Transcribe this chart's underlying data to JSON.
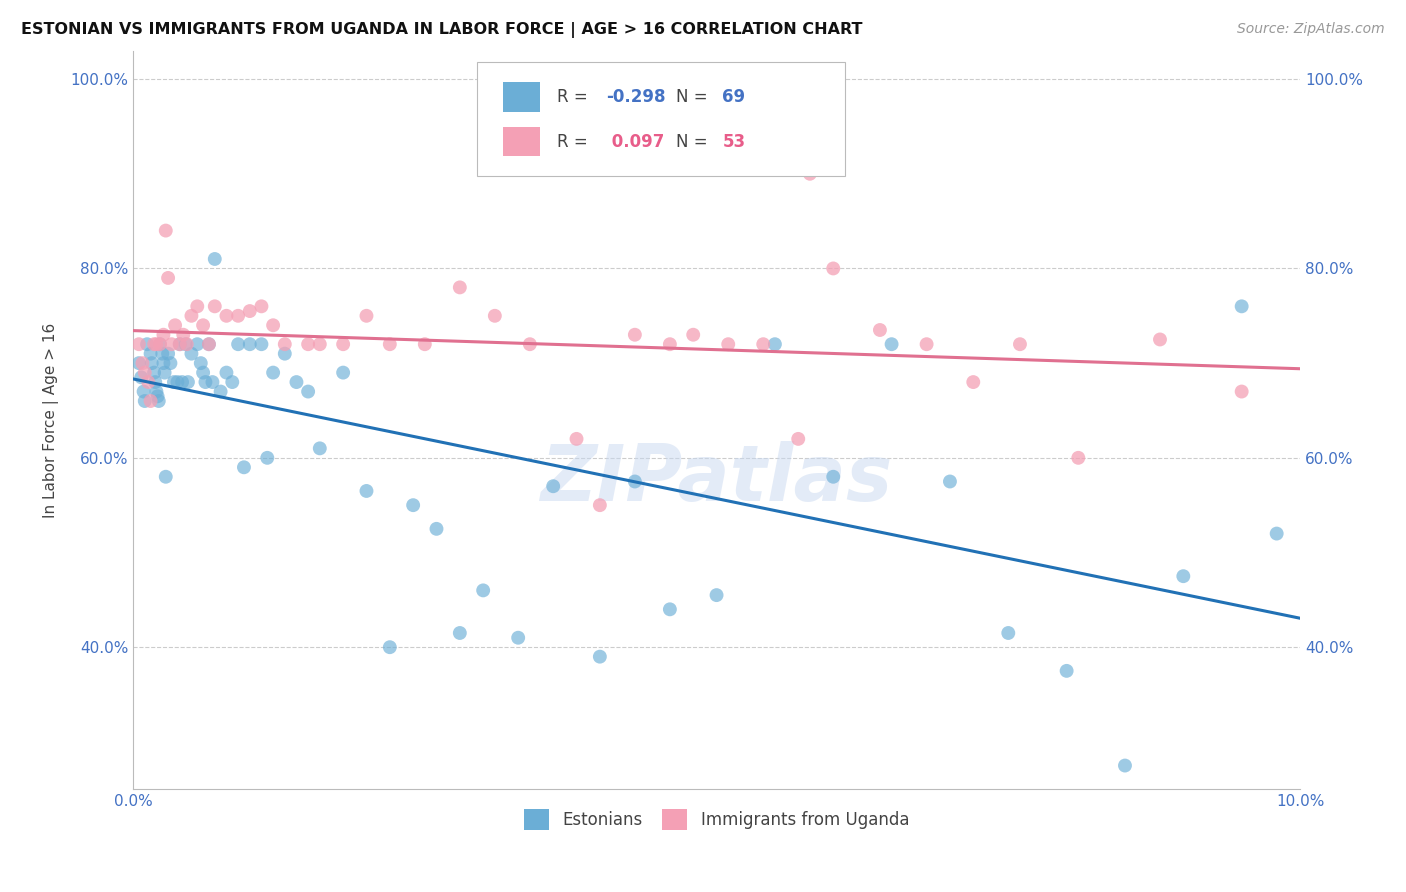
{
  "title": "ESTONIAN VS IMMIGRANTS FROM UGANDA IN LABOR FORCE | AGE > 16 CORRELATION CHART",
  "source": "Source: ZipAtlas.com",
  "ylabel": "In Labor Force | Age > 16",
  "xlim": [
    0.0,
    0.1
  ],
  "ylim": [
    0.25,
    1.03
  ],
  "yticks": [
    0.4,
    0.6,
    0.8,
    1.0
  ],
  "ytick_labels": [
    "40.0%",
    "60.0%",
    "80.0%",
    "100.0%"
  ],
  "xticks": [
    0.0,
    0.02,
    0.04,
    0.06,
    0.08,
    0.1
  ],
  "xtick_labels": [
    "0.0%",
    "",
    "",
    "",
    "",
    "10.0%"
  ],
  "legend_blue_label": "Estonians",
  "legend_pink_label": "Immigrants from Uganda",
  "R_blue": -0.298,
  "N_blue": 69,
  "R_pink": 0.097,
  "N_pink": 53,
  "blue_color": "#6baed6",
  "pink_color": "#f4a0b5",
  "blue_line_color": "#2171b5",
  "pink_line_color": "#e07090",
  "watermark": "ZIPatlas",
  "background_color": "#ffffff",
  "grid_color": "#cccccc",
  "blue_points_x": [
    0.0005,
    0.0007,
    0.0009,
    0.001,
    0.0012,
    0.0015,
    0.0016,
    0.0018,
    0.0019,
    0.002,
    0.0021,
    0.0022,
    0.0023,
    0.0025,
    0.0026,
    0.0027,
    0.0028,
    0.003,
    0.0032,
    0.0035,
    0.0038,
    0.004,
    0.0042,
    0.0045,
    0.0047,
    0.005,
    0.0055,
    0.0058,
    0.006,
    0.0062,
    0.0065,
    0.0068,
    0.007,
    0.0075,
    0.008,
    0.0085,
    0.009,
    0.0095,
    0.01,
    0.011,
    0.0115,
    0.012,
    0.013,
    0.014,
    0.015,
    0.016,
    0.018,
    0.02,
    0.022,
    0.024,
    0.026,
    0.028,
    0.03,
    0.033,
    0.036,
    0.04,
    0.043,
    0.046,
    0.05,
    0.055,
    0.06,
    0.065,
    0.07,
    0.075,
    0.08,
    0.085,
    0.09,
    0.095,
    0.098
  ],
  "blue_points_y": [
    0.7,
    0.685,
    0.67,
    0.66,
    0.72,
    0.71,
    0.7,
    0.69,
    0.68,
    0.67,
    0.665,
    0.66,
    0.72,
    0.71,
    0.7,
    0.69,
    0.58,
    0.71,
    0.7,
    0.68,
    0.68,
    0.72,
    0.68,
    0.72,
    0.68,
    0.71,
    0.72,
    0.7,
    0.69,
    0.68,
    0.72,
    0.68,
    0.81,
    0.67,
    0.69,
    0.68,
    0.72,
    0.59,
    0.72,
    0.72,
    0.6,
    0.69,
    0.71,
    0.68,
    0.67,
    0.61,
    0.69,
    0.565,
    0.4,
    0.55,
    0.525,
    0.415,
    0.46,
    0.41,
    0.57,
    0.39,
    0.575,
    0.44,
    0.455,
    0.72,
    0.58,
    0.72,
    0.575,
    0.415,
    0.375,
    0.275,
    0.475,
    0.76,
    0.52
  ],
  "pink_points_x": [
    0.0005,
    0.0008,
    0.001,
    0.0013,
    0.0015,
    0.0018,
    0.002,
    0.0023,
    0.0026,
    0.0028,
    0.003,
    0.0033,
    0.0036,
    0.004,
    0.0043,
    0.0046,
    0.005,
    0.0055,
    0.006,
    0.0065,
    0.007,
    0.008,
    0.009,
    0.01,
    0.011,
    0.012,
    0.013,
    0.015,
    0.016,
    0.018,
    0.02,
    0.022,
    0.025,
    0.028,
    0.031,
    0.034,
    0.038,
    0.04,
    0.043,
    0.046,
    0.048,
    0.051,
    0.054,
    0.057,
    0.058,
    0.06,
    0.064,
    0.068,
    0.072,
    0.076,
    0.081,
    0.088,
    0.095
  ],
  "pink_points_y": [
    0.72,
    0.7,
    0.69,
    0.68,
    0.66,
    0.72,
    0.72,
    0.72,
    0.73,
    0.84,
    0.79,
    0.72,
    0.74,
    0.72,
    0.73,
    0.72,
    0.75,
    0.76,
    0.74,
    0.72,
    0.76,
    0.75,
    0.75,
    0.755,
    0.76,
    0.74,
    0.72,
    0.72,
    0.72,
    0.72,
    0.75,
    0.72,
    0.72,
    0.78,
    0.75,
    0.72,
    0.62,
    0.55,
    0.73,
    0.72,
    0.73,
    0.72,
    0.72,
    0.62,
    0.9,
    0.8,
    0.735,
    0.72,
    0.68,
    0.72,
    0.6,
    0.725,
    0.67
  ]
}
